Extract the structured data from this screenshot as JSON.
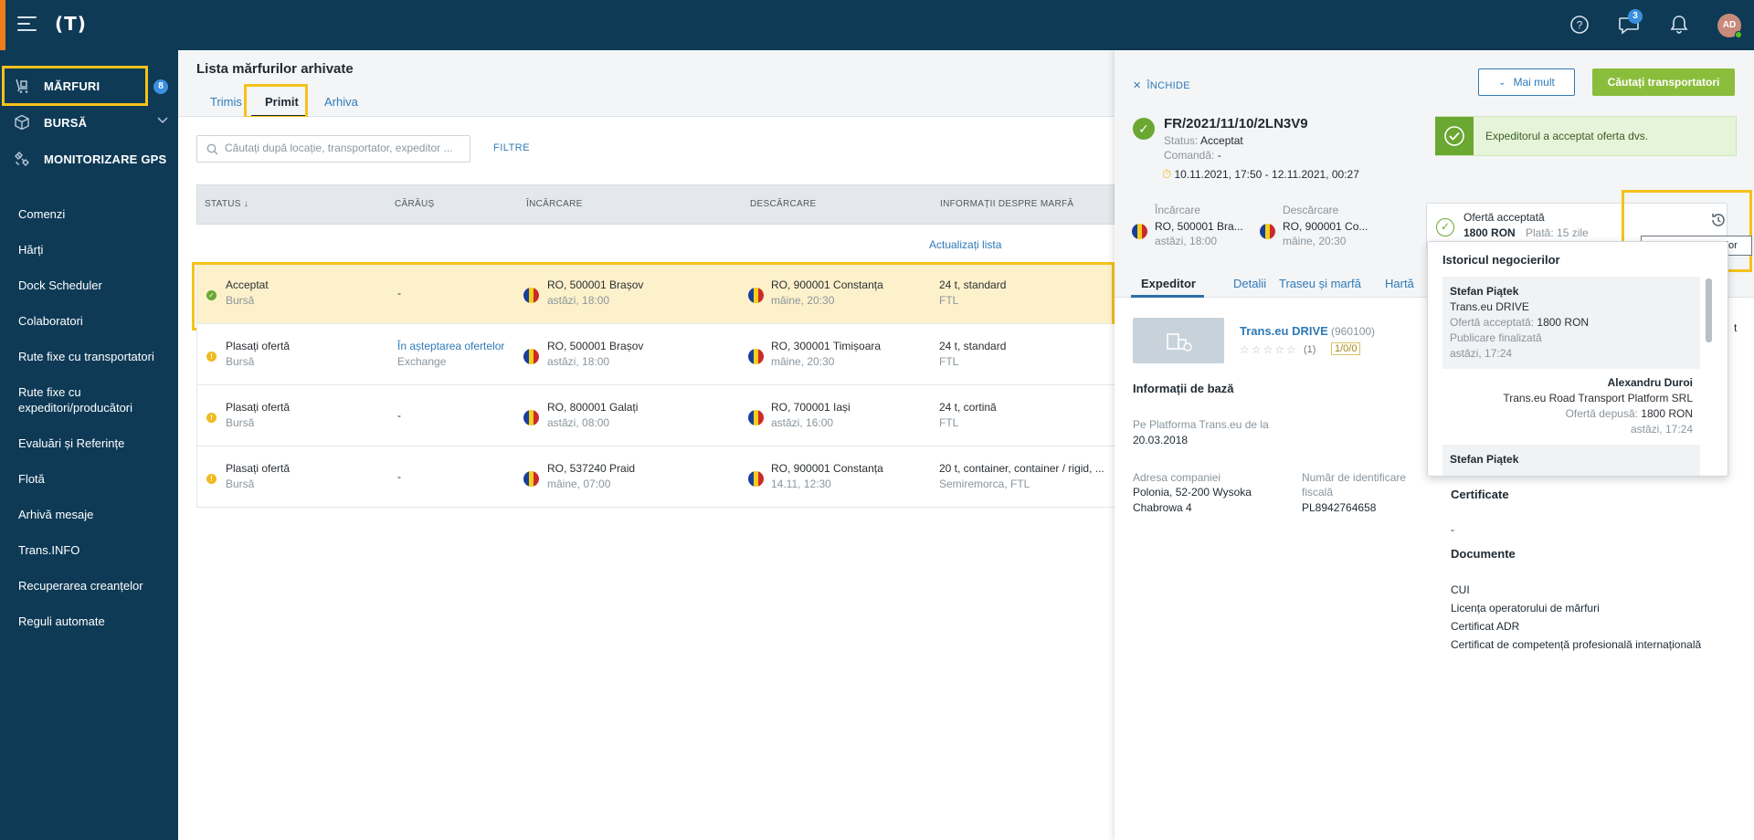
{
  "topbar": {
    "logo": "(T)",
    "messages_count": "3",
    "user_initials": "AD"
  },
  "sidebar": {
    "main": [
      {
        "label": "MĂRFURI",
        "badge": "8"
      },
      {
        "label": "BURSĂ"
      },
      {
        "label": "MONITORIZARE GPS"
      }
    ],
    "items": [
      "Comenzi",
      "Hărți",
      "Dock Scheduler",
      "Colaboratori",
      "Rute fixe cu transportatori",
      "Rute fixe cu expeditori/producători",
      "Evaluări și Referințe",
      "Flotă",
      "Arhivă mesaje",
      "Trans.INFO",
      "Recuperarea creanțelor",
      "Reguli automate"
    ]
  },
  "list": {
    "title": "Lista mărfurilor arhivate",
    "tabs": [
      "Trimis",
      "Primit",
      "Arhiva"
    ],
    "search_placeholder": "Căutați după locație, transportator, expeditor ...",
    "filters_label": "FILTRE",
    "columns": [
      "STATUS ↓",
      "CĂRĂUȘ",
      "ÎNCĂRCARE",
      "DESCĂRCARE",
      "INFORMAȚII DESPRE MARFĂ"
    ],
    "refresh_label": "Actualizați lista",
    "rows": [
      {
        "status": "Acceptat",
        "source": "Bursă",
        "carrier": "-",
        "carrier_sub": "",
        "load": "RO, 500001 Brașov",
        "load_time": "astăzi, 18:00",
        "unload": "RO, 900001 Constanța",
        "unload_time": "mâine, 20:30",
        "cargo": "24 t, standard",
        "cargo_sub": "FTL"
      },
      {
        "status": "Plasați ofertă",
        "source": "Bursă",
        "carrier": "În așteptarea ofertelor",
        "carrier_sub": "Exchange",
        "load": "RO, 500001 Brașov",
        "load_time": "astăzi, 18:00",
        "unload": "RO, 300001 Timișoara",
        "unload_time": "mâine, 20:30",
        "cargo": "24 t, standard",
        "cargo_sub": "FTL"
      },
      {
        "status": "Plasați ofertă",
        "source": "Bursă",
        "carrier": "-",
        "carrier_sub": "",
        "load": "RO, 800001 Galați",
        "load_time": "astăzi, 08:00",
        "unload": "RO, 700001 Iași",
        "unload_time": "astăzi, 16:00",
        "cargo": "24 t, cortină",
        "cargo_sub": "FTL"
      },
      {
        "status": "Plasați ofertă",
        "source": "Bursă",
        "carrier": "-",
        "carrier_sub": "",
        "load": "RO, 537240 Praid",
        "load_time": "mâine, 07:00",
        "unload": "RO, 900001 Constanța",
        "unload_time": "14.11, 12:30",
        "cargo": "20 t, container, container / rigid, ...",
        "cargo_sub": "Semiremorca, FTL"
      }
    ]
  },
  "detail": {
    "close_label": "ÎNCHIDE",
    "more_label": "Mai mult",
    "find_label": "Căutați transportatori",
    "ref": "FR/2021/11/10/2LN3V9",
    "status_label": "Status:",
    "status_value": "Acceptat",
    "order_label": "Comandă:",
    "order_value": "-",
    "period": "10.11.2021, 17:50 - 12.11.2021, 00:27",
    "accepted_msg": "Expeditorul a acceptat oferta dvs.",
    "load_label": "Încărcare",
    "load_value": "RO, 500001 Bra...",
    "load_time": "astăzi, 18:00",
    "unload_label": "Descărcare",
    "unload_value": "RO, 900001 Co...",
    "unload_time": "mâine, 20:30",
    "offer_title": "Ofertă acceptată",
    "offer_amount": "1800 RON",
    "offer_pay": "Plată: 15 zile",
    "tooltip": "Istoricul negocierilor",
    "tabs": [
      "Expeditor",
      "Detalii",
      "Traseu și marfă",
      "Hartă"
    ],
    "company_name": "Trans.eu DRIVE",
    "company_id": "(960100)",
    "stars": "☆☆☆☆☆",
    "rating_count": "(1)",
    "rating_box": "1/0/0",
    "basic_info": "Informații de bază",
    "platform_label": "Pe Platforma Trans.eu de la",
    "platform_date": "20.03.2018",
    "address_label": "Adresa companiei",
    "address_value_1": "Polonia, 52-200 Wysoka",
    "address_value_2": "Chabrowa 4",
    "tax_label_1": "Număr de identificare",
    "tax_label_2": "fiscală",
    "tax_value": "PL8942764658",
    "cert_h": "Certificate",
    "cert_value": "-",
    "docs_h": "Documente",
    "docs": [
      "CUI",
      "Licența operatorului de mărfuri",
      "Certificat ADR",
      "Certificat de competență profesională internațională"
    ],
    "side_letter": "t"
  },
  "negotiation": {
    "title": "Istoricul negocierilor",
    "entries": [
      {
        "name": "Stefan Piątek",
        "company": "Trans.eu DRIVE",
        "line_label": "Ofertă acceptată:",
        "line_value": "1800 RON",
        "extra": "Publicare finalizată",
        "time": "astăzi, 17:24"
      },
      {
        "name": "Alexandru Duroi",
        "company": "Trans.eu Road Transport Platform SRL",
        "line_label": "Ofertă depusă:",
        "line_value": "1800 RON",
        "extra": "",
        "time": "astăzi, 17:24"
      },
      {
        "name": "Stefan Piątek"
      }
    ]
  },
  "colors": {
    "brand": "#0e3a56",
    "accent": "#f07d1d",
    "highlight": "#f5c21b",
    "ok": "#6aa832",
    "warn": "#f1b91c",
    "link": "#2f7ab8"
  }
}
